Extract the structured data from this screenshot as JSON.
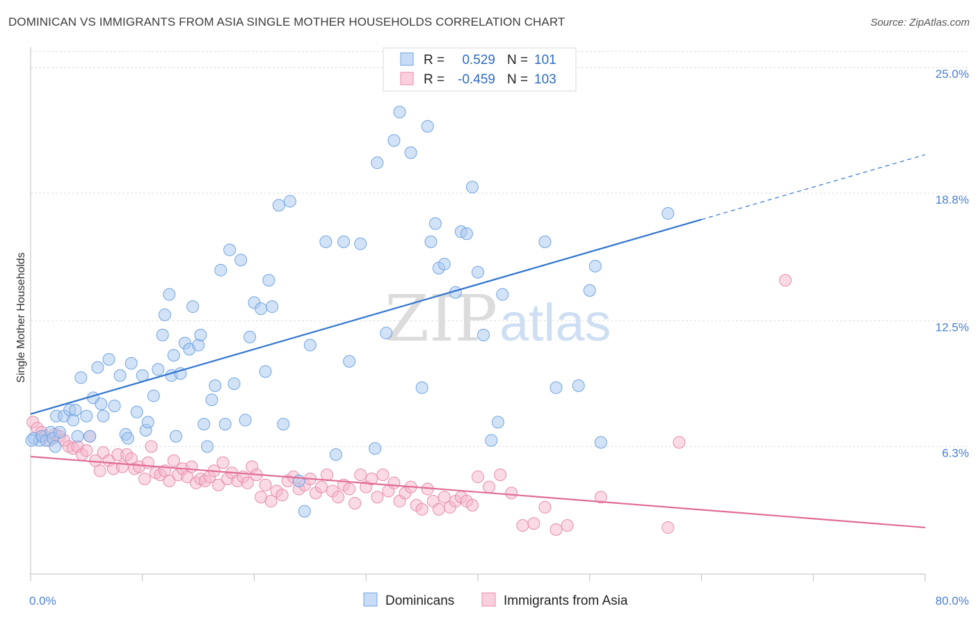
{
  "header": {
    "title": "DOMINICAN VS IMMIGRANTS FROM ASIA SINGLE MOTHER HOUSEHOLDS CORRELATION CHART",
    "source": "Source: ZipAtlas.com"
  },
  "watermark": {
    "zip": "ZIP",
    "atlas": "atlas"
  },
  "legend": {
    "rows": [
      {
        "r_label": "R =",
        "r_value": "0.529",
        "n_label": "N =",
        "n_value": "101",
        "color": "#a8c8f0"
      },
      {
        "r_label": "R =",
        "r_value": "-0.459",
        "n_label": "N =",
        "n_value": "103",
        "color": "#f5b6cb"
      }
    ]
  },
  "chart_data": {
    "type": "scatter",
    "title": "DOMINICAN VS IMMIGRANTS FROM ASIA SINGLE MOTHER HOUSEHOLDS CORRELATION CHART",
    "xlabel": "",
    "ylabel": "Single Mother Households",
    "xlim": [
      0,
      80
    ],
    "ylim": [
      0,
      26
    ],
    "x_tick_labels": [
      "0.0%",
      "80.0%"
    ],
    "y_ticks": [
      6.3,
      12.5,
      18.8,
      25.0
    ],
    "y_tick_labels": [
      "6.3%",
      "12.5%",
      "18.8%",
      "25.0%"
    ],
    "grid": true,
    "legend_position": "top-center",
    "series": [
      {
        "name": "Dominicans",
        "color": "#a8c8f0",
        "stroke": "#6fa3e0",
        "trend": {
          "x": [
            0,
            60
          ],
          "y": [
            7.9,
            17.5
          ],
          "color": "#2f74d0",
          "dashed_extension": {
            "x": [
              60,
              80
            ],
            "y": [
              17.5,
              20.7
            ]
          }
        },
        "points": [
          [
            0.3,
            6.7
          ],
          [
            0.8,
            6.6
          ],
          [
            1.0,
            6.8
          ],
          [
            1.4,
            6.6
          ],
          [
            1.8,
            7.0
          ],
          [
            2.0,
            6.7
          ],
          [
            2.2,
            6.3
          ],
          [
            2.3,
            7.8
          ],
          [
            2.6,
            7.0
          ],
          [
            3.0,
            7.8
          ],
          [
            3.5,
            8.1
          ],
          [
            3.8,
            7.6
          ],
          [
            4.0,
            8.1
          ],
          [
            4.2,
            6.8
          ],
          [
            4.5,
            9.7
          ],
          [
            5.0,
            7.8
          ],
          [
            5.3,
            6.8
          ],
          [
            5.6,
            8.7
          ],
          [
            6.0,
            10.2
          ],
          [
            6.3,
            8.4
          ],
          [
            6.5,
            7.8
          ],
          [
            7.0,
            10.6
          ],
          [
            7.5,
            8.3
          ],
          [
            8.0,
            9.8
          ],
          [
            8.5,
            6.9
          ],
          [
            8.7,
            6.7
          ],
          [
            9.0,
            10.4
          ],
          [
            9.5,
            8.0
          ],
          [
            10.0,
            9.8
          ],
          [
            10.3,
            7.1
          ],
          [
            10.5,
            7.5
          ],
          [
            11.0,
            8.8
          ],
          [
            11.4,
            10.1
          ],
          [
            11.8,
            11.8
          ],
          [
            12.0,
            12.8
          ],
          [
            12.4,
            13.8
          ],
          [
            12.6,
            9.8
          ],
          [
            12.8,
            10.8
          ],
          [
            13.0,
            6.8
          ],
          [
            13.4,
            9.9
          ],
          [
            13.8,
            11.4
          ],
          [
            14.2,
            11.1
          ],
          [
            14.5,
            13.2
          ],
          [
            15.0,
            11.3
          ],
          [
            15.2,
            11.8
          ],
          [
            15.5,
            7.4
          ],
          [
            15.8,
            6.3
          ],
          [
            16.2,
            8.6
          ],
          [
            16.5,
            9.3
          ],
          [
            17.0,
            15.0
          ],
          [
            17.4,
            7.4
          ],
          [
            17.8,
            16.0
          ],
          [
            18.2,
            9.4
          ],
          [
            18.8,
            15.5
          ],
          [
            19.2,
            7.6
          ],
          [
            19.6,
            11.7
          ],
          [
            20.0,
            13.4
          ],
          [
            20.6,
            13.1
          ],
          [
            21.0,
            10.0
          ],
          [
            21.3,
            14.5
          ],
          [
            21.6,
            13.2
          ],
          [
            22.2,
            18.2
          ],
          [
            22.6,
            7.4
          ],
          [
            23.2,
            18.4
          ],
          [
            24.0,
            4.6
          ],
          [
            24.5,
            3.1
          ],
          [
            25.0,
            11.3
          ],
          [
            26.4,
            16.4
          ],
          [
            27.3,
            5.9
          ],
          [
            28.0,
            16.4
          ],
          [
            28.5,
            10.5
          ],
          [
            29.5,
            16.3
          ],
          [
            30.8,
            6.2
          ],
          [
            31.0,
            20.3
          ],
          [
            31.8,
            11.9
          ],
          [
            32.5,
            21.4
          ],
          [
            33.0,
            22.8
          ],
          [
            34.0,
            20.8
          ],
          [
            35.0,
            9.2
          ],
          [
            35.5,
            22.1
          ],
          [
            35.8,
            16.4
          ],
          [
            36.2,
            17.3
          ],
          [
            36.5,
            15.1
          ],
          [
            37.0,
            15.3
          ],
          [
            38.0,
            13.9
          ],
          [
            38.5,
            16.9
          ],
          [
            39.0,
            16.8
          ],
          [
            39.5,
            19.1
          ],
          [
            40.0,
            14.9
          ],
          [
            40.5,
            11.8
          ],
          [
            41.2,
            6.6
          ],
          [
            41.8,
            7.5
          ],
          [
            42.2,
            13.8
          ],
          [
            46.0,
            16.4
          ],
          [
            47.0,
            9.2
          ],
          [
            49.0,
            9.3
          ],
          [
            50.0,
            14.0
          ],
          [
            50.5,
            15.2
          ],
          [
            51.0,
            6.5
          ],
          [
            57.0,
            17.8
          ],
          [
            0.1,
            6.6
          ]
        ]
      },
      {
        "name": "Immigrants from Asia",
        "color": "#f5b6cb",
        "stroke": "#e88aab",
        "trend": {
          "x": [
            0,
            80
          ],
          "y": [
            5.8,
            2.3
          ],
          "color": "#e06b96"
        },
        "points": [
          [
            0.2,
            7.5
          ],
          [
            0.6,
            7.2
          ],
          [
            1.0,
            7.0
          ],
          [
            1.3,
            6.8
          ],
          [
            1.7,
            6.6
          ],
          [
            2.2,
            6.9
          ],
          [
            2.6,
            6.8
          ],
          [
            3.0,
            6.6
          ],
          [
            3.4,
            6.3
          ],
          [
            3.8,
            6.2
          ],
          [
            4.2,
            6.3
          ],
          [
            4.6,
            5.9
          ],
          [
            5.0,
            6.1
          ],
          [
            5.3,
            6.8
          ],
          [
            5.8,
            5.6
          ],
          [
            6.2,
            5.1
          ],
          [
            6.5,
            6.0
          ],
          [
            7.0,
            5.6
          ],
          [
            7.4,
            5.2
          ],
          [
            7.8,
            5.9
          ],
          [
            8.2,
            5.3
          ],
          [
            8.6,
            5.9
          ],
          [
            9.0,
            5.7
          ],
          [
            9.3,
            5.2
          ],
          [
            9.7,
            5.3
          ],
          [
            10.2,
            4.7
          ],
          [
            10.5,
            5.5
          ],
          [
            10.8,
            6.3
          ],
          [
            11.2,
            5.0
          ],
          [
            11.6,
            4.9
          ],
          [
            12.0,
            5.1
          ],
          [
            12.4,
            4.6
          ],
          [
            12.8,
            5.6
          ],
          [
            13.2,
            4.9
          ],
          [
            13.6,
            5.2
          ],
          [
            14.0,
            4.8
          ],
          [
            14.4,
            5.3
          ],
          [
            14.8,
            4.5
          ],
          [
            15.2,
            4.7
          ],
          [
            15.6,
            4.6
          ],
          [
            16.0,
            4.8
          ],
          [
            16.4,
            5.1
          ],
          [
            16.8,
            4.4
          ],
          [
            17.2,
            5.5
          ],
          [
            17.6,
            4.7
          ],
          [
            18.0,
            5.0
          ],
          [
            18.5,
            4.6
          ],
          [
            19.0,
            4.8
          ],
          [
            19.4,
            4.5
          ],
          [
            19.8,
            5.3
          ],
          [
            20.2,
            4.9
          ],
          [
            20.6,
            3.8
          ],
          [
            21.0,
            4.4
          ],
          [
            21.5,
            3.6
          ],
          [
            22.0,
            4.1
          ],
          [
            22.5,
            3.9
          ],
          [
            23.0,
            4.6
          ],
          [
            23.5,
            4.8
          ],
          [
            24.0,
            4.2
          ],
          [
            24.5,
            4.4
          ],
          [
            25.0,
            4.7
          ],
          [
            25.5,
            4.0
          ],
          [
            26.0,
            4.3
          ],
          [
            26.5,
            4.9
          ],
          [
            27.0,
            4.1
          ],
          [
            27.5,
            3.8
          ],
          [
            28.0,
            4.4
          ],
          [
            28.5,
            4.2
          ],
          [
            29.0,
            3.5
          ],
          [
            29.5,
            4.9
          ],
          [
            30.0,
            4.3
          ],
          [
            30.5,
            4.7
          ],
          [
            31.0,
            3.8
          ],
          [
            31.5,
            4.9
          ],
          [
            32.0,
            4.1
          ],
          [
            32.5,
            4.5
          ],
          [
            33.0,
            3.6
          ],
          [
            33.5,
            4.0
          ],
          [
            34.0,
            4.3
          ],
          [
            34.5,
            3.4
          ],
          [
            35.0,
            3.2
          ],
          [
            35.5,
            4.2
          ],
          [
            36.0,
            3.6
          ],
          [
            36.5,
            3.2
          ],
          [
            37.0,
            3.8
          ],
          [
            37.5,
            3.3
          ],
          [
            38.0,
            3.6
          ],
          [
            38.5,
            3.8
          ],
          [
            39.0,
            3.6
          ],
          [
            39.5,
            3.4
          ],
          [
            40.0,
            4.8
          ],
          [
            41.0,
            4.3
          ],
          [
            42.0,
            4.9
          ],
          [
            43.0,
            4.0
          ],
          [
            44.0,
            2.4
          ],
          [
            45.0,
            2.5
          ],
          [
            46.0,
            3.3
          ],
          [
            47.0,
            2.2
          ],
          [
            48.0,
            2.4
          ],
          [
            51.0,
            3.8
          ],
          [
            57.0,
            2.3
          ],
          [
            58.0,
            6.5
          ],
          [
            67.5,
            14.5
          ]
        ]
      }
    ]
  },
  "bottom_legend": {
    "items": [
      {
        "label": "Dominicans",
        "color": "#a8c8f0"
      },
      {
        "label": "Immigrants from Asia",
        "color": "#f5b6cb"
      }
    ]
  }
}
